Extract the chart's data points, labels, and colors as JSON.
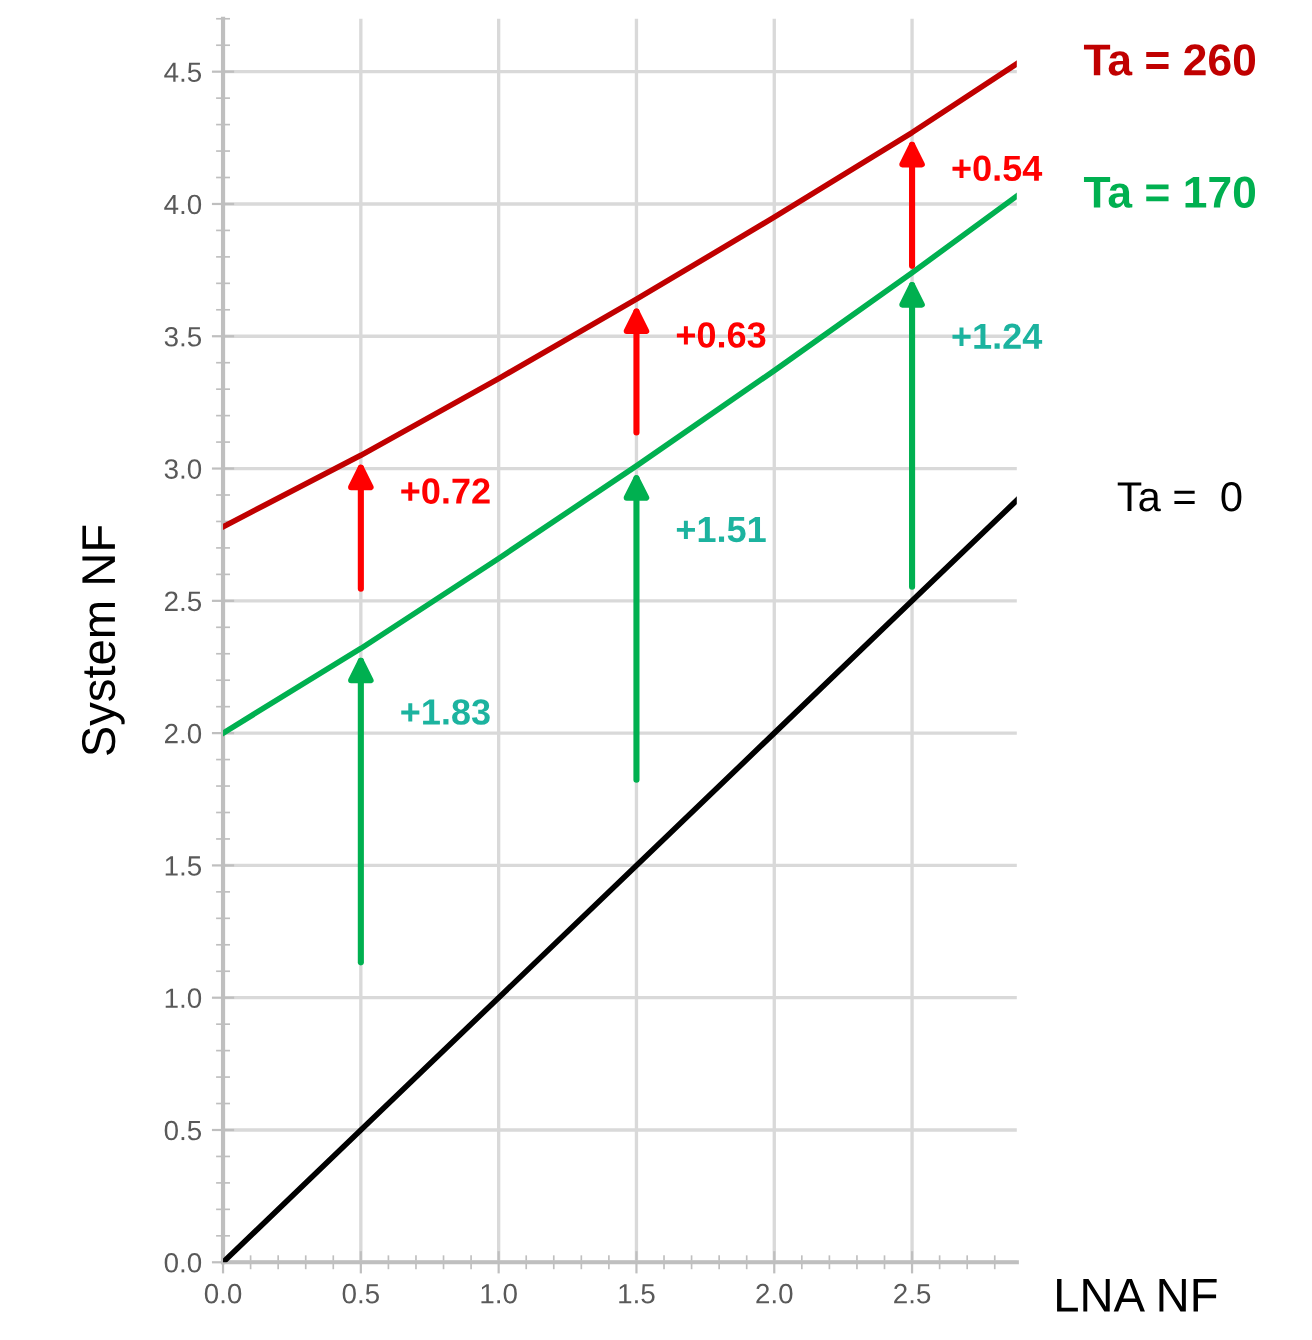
{
  "chart_data": {
    "type": "line",
    "xlabel": "LNA NF",
    "ylabel": "System NF",
    "x": [
      0,
      0.5,
      1.0,
      1.5,
      2.0,
      2.5,
      2.88
    ],
    "series": [
      {
        "name": "Ta = 260",
        "color": "#c00000",
        "values": [
          2.78,
          3.05,
          3.34,
          3.64,
          3.95,
          4.27,
          4.53
        ]
      },
      {
        "name": "Ta = 170",
        "color": "#00b050",
        "values": [
          2.0,
          2.32,
          2.66,
          3.01,
          3.37,
          3.74,
          4.03
        ]
      },
      {
        "name": "Ta =  0",
        "color": "#000000",
        "values": [
          0,
          0.5,
          1.0,
          1.5,
          2.0,
          2.5,
          2.88
        ]
      }
    ],
    "xlim": [
      0,
      2.88
    ],
    "ylim": [
      0,
      4.7
    ],
    "xticks": [
      {
        "value": 0,
        "label": "0.0"
      },
      {
        "value": 0.5,
        "label": "0.5"
      },
      {
        "value": 1.0,
        "label": "1.0"
      },
      {
        "value": 1.5,
        "label": "1.5"
      },
      {
        "value": 2.0,
        "label": "2.0"
      },
      {
        "value": 2.5,
        "label": "2.5"
      }
    ],
    "yticks": [
      {
        "value": 0,
        "label": "0.0"
      },
      {
        "value": 0.5,
        "label": "0.5"
      },
      {
        "value": 1.0,
        "label": "1.0"
      },
      {
        "value": 1.5,
        "label": "1.5"
      },
      {
        "value": 2.0,
        "label": "2.0"
      },
      {
        "value": 2.5,
        "label": "2.5"
      },
      {
        "value": 3.0,
        "label": "3.0"
      },
      {
        "value": 3.5,
        "label": "3.5"
      },
      {
        "value": 4.0,
        "label": "4.0"
      },
      {
        "value": 4.5,
        "label": "4.5"
      }
    ],
    "grid": true,
    "legend": false,
    "marker": "none",
    "line_style": "solid",
    "annotations": [
      {
        "text": "+1.83",
        "x": 0.5,
        "y": 2.32
      },
      {
        "text": "+1.51",
        "x": 1.5,
        "y": 3.01
      },
      {
        "text": "+1.24",
        "x": 2.5,
        "y": 3.74
      },
      {
        "text": "+0.72",
        "x": 0.5,
        "y": 3.05
      },
      {
        "text": "+0.63",
        "x": 1.5,
        "y": 3.64
      },
      {
        "text": "+0.54",
        "x": 2.5,
        "y": 4.27
      }
    ]
  }
}
